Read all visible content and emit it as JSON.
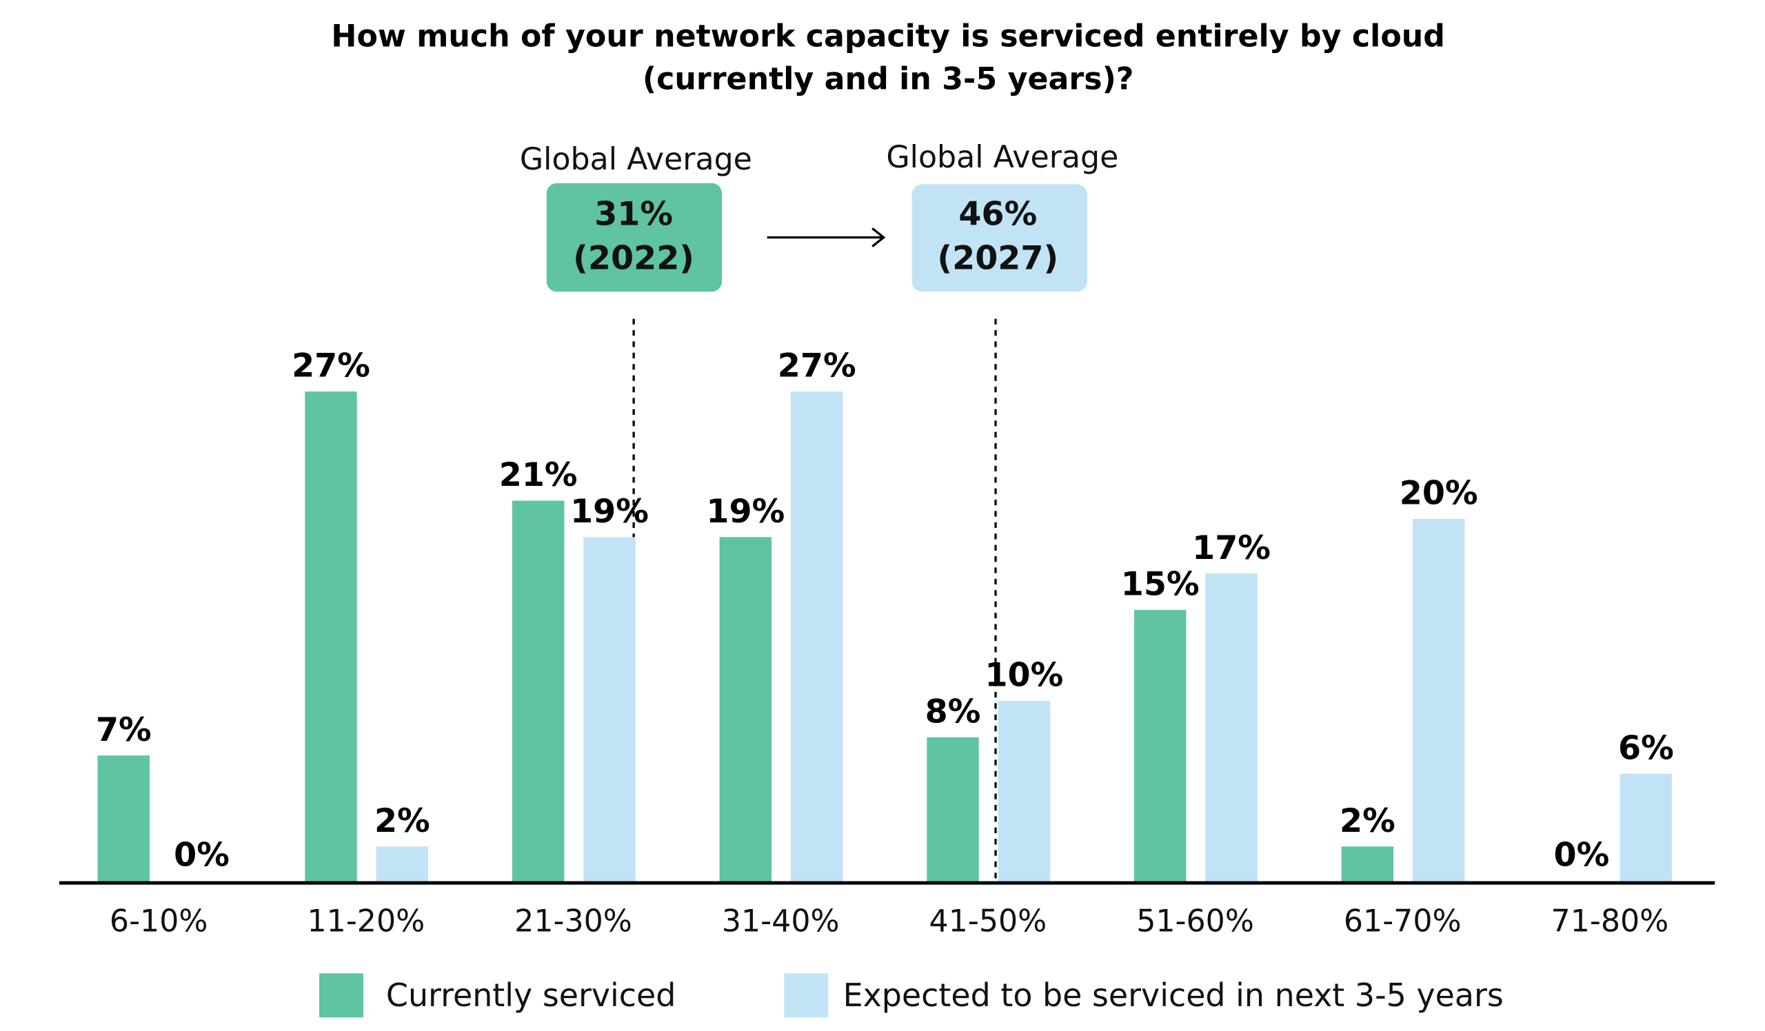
{
  "chart_data": {
    "type": "bar",
    "title": "How much of your network capacity is serviced entirely by cloud",
    "subtitle": "(currently and in 3-5 years)?",
    "xlabel": "",
    "ylabel": "",
    "categories": [
      "6-10%",
      "11-20%",
      "21-30%",
      "31-40%",
      "41-50%",
      "51-60%",
      "61-70%",
      "71-80%"
    ],
    "series": [
      {
        "name": "Currently serviced",
        "color": "#5EC4A4",
        "values": [
          7,
          27,
          21,
          19,
          8,
          15,
          2,
          0
        ]
      },
      {
        "name": "Expected to be serviced in next 3-5 years",
        "color": "#C2E3F5",
        "values": [
          0,
          2,
          19,
          27,
          10,
          17,
          20,
          6
        ]
      }
    ],
    "value_labels": {
      "series0": [
        "7%",
        "27%",
        "21%",
        "19%",
        "8%",
        "15%",
        "2%",
        "0%"
      ],
      "series1": [
        "0%",
        "2%",
        "19%",
        "27%",
        "10%",
        "17%",
        "20%",
        "6%"
      ]
    },
    "ylim": [
      0,
      30
    ],
    "grid": false,
    "legend_position": "bottom",
    "annotations": {
      "current": {
        "label": "Global Average",
        "value": "31%",
        "year": "(2022)",
        "at_value": 31,
        "color": "#5EC4A4"
      },
      "future": {
        "label": "Global Average",
        "value": "46%",
        "year": "(2027)",
        "at_value": 46,
        "color": "#C2E3F5"
      }
    }
  }
}
